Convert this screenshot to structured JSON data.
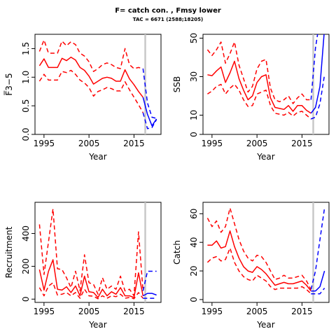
{
  "figure": {
    "title": "F= catch con. , Fmsy lower",
    "subtitle": "TAC = 6671 (2588;18205)"
  },
  "colors": {
    "historic": "#ff0000",
    "forecast": "#0000ff",
    "reference_line": "#c8c8c8",
    "axis": "#000000"
  },
  "chart_data": [
    {
      "type": "line",
      "id": "fbar",
      "title": "",
      "xlabel": "Year",
      "ylabel": "F̅3−5",
      "xlim": [
        1993,
        2021
      ],
      "ylim": [
        0,
        1.75
      ],
      "xticks": [
        1995,
        2005,
        2015
      ],
      "yticks": [
        0.0,
        0.5,
        1.0,
        1.5
      ],
      "ytick_labels": [
        "0.0",
        "0.5",
        "1.0",
        "1.5"
      ],
      "vline_x": 2017.5,
      "historic_x": [
        1994,
        1995,
        1996,
        1997,
        1998,
        1999,
        2000,
        2001,
        2002,
        2003,
        2004,
        2005,
        2006,
        2007,
        2008,
        2009,
        2010,
        2011,
        2012,
        2013,
        2014,
        2015,
        2016,
        2017
      ],
      "historic_est": [
        1.2,
        1.32,
        1.17,
        1.17,
        1.17,
        1.33,
        1.29,
        1.35,
        1.3,
        1.17,
        1.12,
        1.02,
        0.88,
        0.93,
        0.98,
        1.0,
        0.98,
        0.93,
        0.93,
        1.13,
        0.97,
        0.87,
        0.75,
        0.65
      ],
      "historic_upper": [
        1.45,
        1.65,
        1.42,
        1.42,
        1.42,
        1.63,
        1.55,
        1.62,
        1.57,
        1.42,
        1.37,
        1.27,
        1.1,
        1.15,
        1.22,
        1.25,
        1.22,
        1.17,
        1.15,
        1.5,
        1.22,
        1.15,
        1.17,
        1.15
      ],
      "historic_lower": [
        0.93,
        1.05,
        0.95,
        0.95,
        0.95,
        1.1,
        1.08,
        1.12,
        1.05,
        0.95,
        0.9,
        0.82,
        0.67,
        0.75,
        0.78,
        0.82,
        0.8,
        0.76,
        0.76,
        0.92,
        0.78,
        0.65,
        0.52,
        0.38
      ],
      "forecast_x": [
        2017,
        2018,
        2019,
        2020
      ],
      "forecast_est": [
        0.65,
        0.35,
        0.15,
        0.27
      ],
      "forecast_upper": [
        1.15,
        0.55,
        0.3,
        0.28
      ],
      "forecast_lower": [
        0.38,
        0.1,
        0.12,
        0.26
      ]
    },
    {
      "type": "line",
      "id": "ssb",
      "title": "",
      "xlabel": "Year",
      "ylabel": "SSB",
      "xlim": [
        1993,
        2021
      ],
      "ylim": [
        0,
        52
      ],
      "xticks": [
        1995,
        2005,
        2015
      ],
      "yticks": [
        0,
        10,
        30,
        50
      ],
      "ytick_labels": [
        "0",
        "10",
        "30",
        "50"
      ],
      "vline_x": 2017.5,
      "historic_x": [
        1994,
        1995,
        1996,
        1997,
        1998,
        1999,
        2000,
        2001,
        2002,
        2003,
        2004,
        2005,
        2006,
        2007,
        2008,
        2009,
        2010,
        2011,
        2012,
        2013,
        2014,
        2015,
        2016,
        2017
      ],
      "historic_est": [
        31,
        30.5,
        33,
        35,
        27,
        32,
        38,
        29,
        23,
        18,
        20,
        27,
        30,
        31,
        19,
        14,
        13.5,
        13,
        15,
        12,
        15,
        15,
        12.5,
        11
      ],
      "historic_upper": [
        44,
        41,
        44,
        48,
        37,
        42,
        48,
        36,
        29,
        22,
        25,
        34,
        38,
        39,
        24,
        18,
        17,
        18,
        20,
        16,
        19,
        21,
        18,
        18
      ],
      "historic_lower": [
        21,
        22.5,
        25,
        26,
        21,
        24,
        26,
        23,
        18,
        14.5,
        15,
        21,
        22,
        23,
        15,
        11,
        10.5,
        10,
        11.5,
        9.5,
        11.5,
        12,
        10,
        8
      ],
      "forecast_x": [
        2017,
        2018,
        2019,
        2020
      ],
      "forecast_est": [
        11,
        14,
        25,
        55
      ],
      "forecast_upper": [
        18,
        45,
        60,
        62
      ],
      "forecast_lower": [
        8,
        9,
        16,
        31
      ]
    },
    {
      "type": "line",
      "id": "recruitment",
      "title": "",
      "xlabel": "Year",
      "ylabel": "Recruitment",
      "xlim": [
        1993,
        2021
      ],
      "ylim": [
        -20,
        590
      ],
      "xticks": [
        1995,
        2005,
        2015
      ],
      "yticks": [
        0,
        200,
        400
      ],
      "ytick_labels": [
        "0",
        "200",
        "400"
      ],
      "vline_x": 2017.5,
      "historic_x": [
        1994,
        1995,
        1996,
        1997,
        1998,
        1999,
        2000,
        2001,
        2002,
        2003,
        2004,
        2005,
        2006,
        2007,
        2008,
        2009,
        2010,
        2011,
        2012,
        2013,
        2014,
        2015,
        2016,
        2017
      ],
      "historic_est": [
        180,
        55,
        170,
        240,
        60,
        55,
        75,
        40,
        80,
        20,
        140,
        45,
        40,
        10,
        60,
        20,
        45,
        30,
        70,
        20,
        20,
        10,
        160,
        20
      ],
      "historic_upper": [
        455,
        150,
        350,
        550,
        185,
        180,
        130,
        70,
        170,
        50,
        270,
        100,
        90,
        30,
        130,
        60,
        80,
        60,
        140,
        50,
        60,
        20,
        410,
        50
      ],
      "historic_lower": [
        70,
        20,
        80,
        100,
        25,
        30,
        40,
        20,
        40,
        5,
        60,
        20,
        18,
        2,
        20,
        5,
        20,
        15,
        30,
        5,
        10,
        2,
        40,
        5
      ],
      "forecast_x": [
        2017,
        2018,
        2019,
        2020
      ],
      "forecast_est": [
        20,
        35,
        35,
        25
      ],
      "forecast_upper": [
        50,
        170,
        170,
        170
      ],
      "forecast_lower": [
        5,
        5,
        5,
        5
      ]
    },
    {
      "type": "line",
      "id": "catch",
      "title": "",
      "xlabel": "Year",
      "ylabel": "Catch",
      "xlim": [
        1993,
        2021
      ],
      "ylim": [
        -2,
        68
      ],
      "xticks": [
        1995,
        2005,
        2015
      ],
      "yticks": [
        0,
        20,
        40,
        60
      ],
      "ytick_labels": [
        "0",
        "20",
        "40",
        "60"
      ],
      "vline_x": 2017.5,
      "historic_x": [
        1994,
        1995,
        1996,
        1997,
        1998,
        1999,
        2000,
        2001,
        2002,
        2003,
        2004,
        2005,
        2006,
        2007,
        2008,
        2009,
        2010,
        2011,
        2012,
        2013,
        2014,
        2015,
        2016,
        2017
      ],
      "historic_est": [
        38,
        38,
        41,
        36,
        37,
        48,
        37,
        29,
        23,
        20,
        19,
        23,
        21,
        18,
        14,
        10,
        11,
        12,
        11,
        11,
        12,
        13,
        10,
        6
      ],
      "historic_upper": [
        57,
        51,
        55,
        47,
        51,
        64,
        53,
        42,
        34,
        29,
        27,
        31,
        30,
        26,
        20,
        14,
        15,
        17,
        15,
        15,
        16,
        17,
        13,
        7
      ],
      "historic_lower": [
        26,
        29,
        30,
        27,
        28,
        36,
        26,
        20,
        16,
        14,
        13,
        17,
        15,
        13,
        9,
        7,
        8,
        8,
        8,
        8,
        8,
        9,
        7,
        4
      ],
      "forecast_x": [
        2017,
        2018,
        2019,
        2020
      ],
      "forecast_est": [
        6,
        6,
        9,
        20
      ],
      "forecast_upper": [
        7,
        20,
        42,
        64
      ],
      "forecast_lower": [
        4,
        4,
        4,
        8
      ]
    }
  ]
}
